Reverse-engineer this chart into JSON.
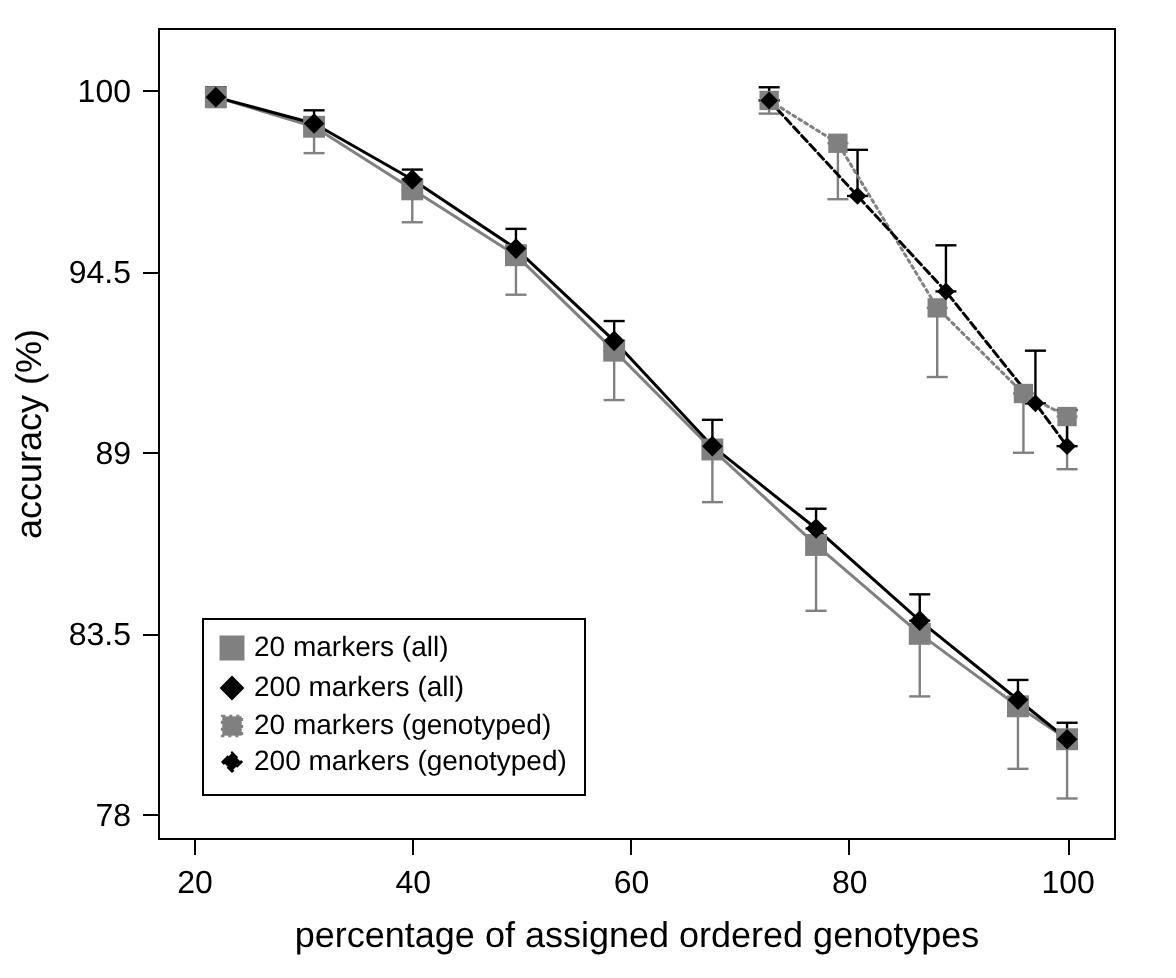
{
  "chart_data": {
    "type": "line",
    "xlabel": "percentage of assigned ordered genotypes",
    "ylabel": "accuracy (%)",
    "xlim": [
      16.7,
      104.3
    ],
    "ylim": [
      77.3,
      101.9
    ],
    "xticks": [
      20,
      40,
      60,
      80,
      100
    ],
    "yticks": [
      78,
      83.5,
      89,
      94.5,
      100
    ],
    "grid": false,
    "legend": "bottom left",
    "series": [
      {
        "name": "20 markers (all)",
        "color": "#808080",
        "marker": "square",
        "line_style": "solid",
        "x": [
          22,
          31,
          40,
          49.5,
          58.5,
          67.5,
          77,
          86.5,
          95.5,
          100
        ],
        "values": [
          99.8,
          98.9,
          97.0,
          95.0,
          92.1,
          89.1,
          86.2,
          83.5,
          81.3,
          80.3
        ],
        "errors": [
          [
            99.5,
            99.8
          ],
          [
            98.1,
            98.9
          ],
          [
            96.0,
            97.0
          ],
          [
            93.8,
            95.0
          ],
          [
            90.6,
            92.1
          ],
          [
            87.5,
            89.1
          ],
          [
            84.2,
            86.2
          ],
          [
            81.6,
            83.5
          ],
          [
            79.4,
            81.3
          ],
          [
            78.5,
            80.3
          ]
        ]
      },
      {
        "name": "200 markers (all)",
        "color": "#000000",
        "marker": "diamond",
        "line_style": "solid",
        "x": [
          22,
          31,
          40,
          49.5,
          58.5,
          67.5,
          77,
          86.5,
          95.5,
          100
        ],
        "values": [
          99.8,
          99.0,
          97.3,
          95.2,
          92.4,
          89.2,
          86.7,
          83.9,
          81.5,
          80.3
        ],
        "errors": [
          [
            99.8,
            100.1
          ],
          [
            99.0,
            99.4
          ],
          [
            97.3,
            97.6
          ],
          [
            95.2,
            95.8
          ],
          [
            92.4,
            93.0
          ],
          [
            89.2,
            90.0
          ],
          [
            86.7,
            87.3
          ],
          [
            83.9,
            84.7
          ],
          [
            81.5,
            82.1
          ],
          [
            80.3,
            80.8
          ]
        ]
      },
      {
        "name": "20 markers (genotyped)",
        "color": "#808080",
        "marker": "square",
        "line_style": "dotted",
        "x": [
          72.7,
          79,
          88.1,
          96,
          100
        ],
        "values": [
          99.7,
          98.4,
          93.4,
          90.8,
          90.1
        ],
        "errors": [
          [
            99.3,
            99.7
          ],
          [
            96.7,
            98.4
          ],
          [
            91.3,
            93.4
          ],
          [
            89.0,
            90.8
          ],
          [
            88.5,
            90.1
          ]
        ]
      },
      {
        "name": "200 markers (genotyped)",
        "color": "#000000",
        "marker": "diamond",
        "line_style": "dashed",
        "x": [
          72.7,
          80.8,
          88.9,
          97.1,
          100
        ],
        "values": [
          99.7,
          96.8,
          93.9,
          90.5,
          89.2
        ],
        "errors": [
          [
            99.7,
            100.1
          ],
          [
            96.8,
            98.2
          ],
          [
            93.9,
            95.3
          ],
          [
            90.5,
            92.1
          ],
          [
            89.2,
            90.3
          ]
        ]
      }
    ]
  }
}
